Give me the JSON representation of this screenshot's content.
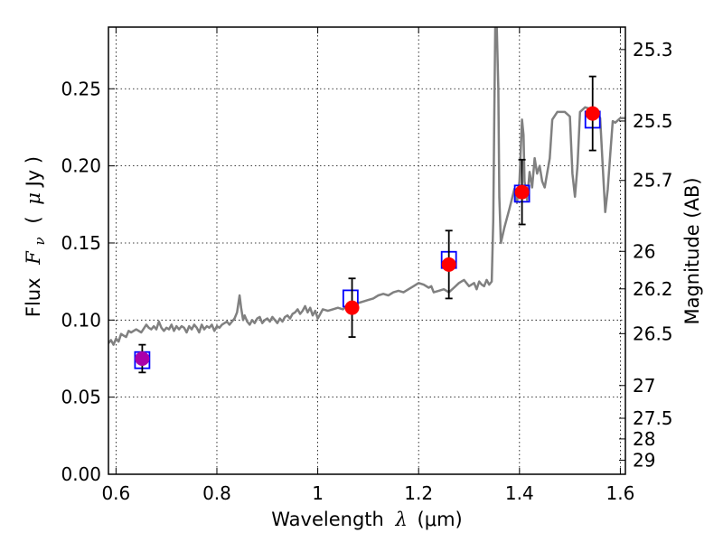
{
  "chart_data": {
    "type": "scatter",
    "xlabel": "Wavelength",
    "xlabel_symbol": "λ",
    "xlabel_unit": "(μm)",
    "ylabel": "Flux",
    "ylabel_symbol": "F",
    "ylabel_subscript": "ν",
    "ylabel_unit_open": "(",
    "ylabel_unit_mu": "μ",
    "ylabel_unit_rest": "Jy )",
    "y2label": "Magnitude (AB)",
    "xlim": [
      0.585,
      1.61
    ],
    "ylim": [
      0.0,
      0.29
    ],
    "x_ticks": [
      0.6,
      0.8,
      1.0,
      1.2,
      1.4,
      1.6
    ],
    "x_tick_labels": [
      "0.6",
      "0.8",
      "1",
      "1.2",
      "1.4",
      "1.6"
    ],
    "y_ticks": [
      0.0,
      0.05,
      0.1,
      0.15,
      0.2,
      0.25
    ],
    "y_tick_labels": [
      "0.00",
      "0.05",
      "0.10",
      "0.15",
      "0.20",
      "0.25"
    ],
    "mag_ticks": [
      25.3,
      25.5,
      25.7,
      26,
      26.2,
      26.5,
      27,
      27.5,
      28,
      29
    ],
    "mag_tick_labels": [
      "25.3",
      "25.5",
      "25.7",
      "26",
      "26.2",
      "26.5",
      "27",
      "27.5",
      "28",
      "29"
    ],
    "grid": true,
    "colors": {
      "model": "#808080",
      "observed": "#ff0000",
      "model_box": "#0000ff",
      "errorbar": "#000000",
      "first_point": "#aa00aa"
    },
    "series": [
      {
        "kind": "model_spectrum",
        "points": [
          [
            0.585,
            0.085
          ],
          [
            0.59,
            0.087
          ],
          [
            0.595,
            0.084
          ],
          [
            0.6,
            0.088
          ],
          [
            0.605,
            0.086
          ],
          [
            0.61,
            0.091
          ],
          [
            0.615,
            0.09
          ],
          [
            0.62,
            0.089
          ],
          [
            0.625,
            0.093
          ],
          [
            0.63,
            0.092
          ],
          [
            0.64,
            0.094
          ],
          [
            0.65,
            0.092
          ],
          [
            0.66,
            0.097
          ],
          [
            0.665,
            0.095
          ],
          [
            0.67,
            0.094
          ],
          [
            0.675,
            0.096
          ],
          [
            0.68,
            0.094
          ],
          [
            0.685,
            0.099
          ],
          [
            0.69,
            0.095
          ],
          [
            0.695,
            0.093
          ],
          [
            0.7,
            0.095
          ],
          [
            0.705,
            0.094
          ],
          [
            0.71,
            0.097
          ],
          [
            0.715,
            0.093
          ],
          [
            0.72,
            0.096
          ],
          [
            0.725,
            0.094
          ],
          [
            0.73,
            0.096
          ],
          [
            0.735,
            0.095
          ],
          [
            0.74,
            0.092
          ],
          [
            0.745,
            0.096
          ],
          [
            0.75,
            0.094
          ],
          [
            0.755,
            0.097
          ],
          [
            0.76,
            0.095
          ],
          [
            0.765,
            0.092
          ],
          [
            0.77,
            0.097
          ],
          [
            0.775,
            0.094
          ],
          [
            0.78,
            0.096
          ],
          [
            0.785,
            0.095
          ],
          [
            0.79,
            0.097
          ],
          [
            0.795,
            0.093
          ],
          [
            0.8,
            0.096
          ],
          [
            0.805,
            0.095
          ],
          [
            0.81,
            0.097
          ],
          [
            0.815,
            0.098
          ],
          [
            0.82,
            0.099
          ],
          [
            0.825,
            0.097
          ],
          [
            0.83,
            0.099
          ],
          [
            0.835,
            0.101
          ],
          [
            0.84,
            0.105
          ],
          [
            0.845,
            0.116
          ],
          [
            0.848,
            0.108
          ],
          [
            0.852,
            0.1
          ],
          [
            0.855,
            0.103
          ],
          [
            0.86,
            0.099
          ],
          [
            0.865,
            0.097
          ],
          [
            0.87,
            0.1
          ],
          [
            0.875,
            0.098
          ],
          [
            0.88,
            0.101
          ],
          [
            0.885,
            0.102
          ],
          [
            0.89,
            0.098
          ],
          [
            0.895,
            0.1
          ],
          [
            0.9,
            0.101
          ],
          [
            0.905,
            0.099
          ],
          [
            0.91,
            0.102
          ],
          [
            0.915,
            0.1
          ],
          [
            0.92,
            0.098
          ],
          [
            0.925,
            0.101
          ],
          [
            0.93,
            0.099
          ],
          [
            0.935,
            0.102
          ],
          [
            0.94,
            0.103
          ],
          [
            0.945,
            0.101
          ],
          [
            0.95,
            0.104
          ],
          [
            0.955,
            0.105
          ],
          [
            0.96,
            0.107
          ],
          [
            0.965,
            0.104
          ],
          [
            0.97,
            0.106
          ],
          [
            0.975,
            0.109
          ],
          [
            0.98,
            0.105
          ],
          [
            0.985,
            0.108
          ],
          [
            0.99,
            0.103
          ],
          [
            0.995,
            0.106
          ],
          [
            1.0,
            0.101
          ],
          [
            1.005,
            0.104
          ],
          [
            1.01,
            0.107
          ],
          [
            1.02,
            0.106
          ],
          [
            1.03,
            0.107
          ],
          [
            1.04,
            0.108
          ],
          [
            1.05,
            0.107
          ],
          [
            1.06,
            0.11
          ],
          [
            1.07,
            0.109
          ],
          [
            1.08,
            0.111
          ],
          [
            1.09,
            0.112
          ],
          [
            1.1,
            0.113
          ],
          [
            1.11,
            0.114
          ],
          [
            1.12,
            0.116
          ],
          [
            1.13,
            0.117
          ],
          [
            1.14,
            0.116
          ],
          [
            1.15,
            0.118
          ],
          [
            1.16,
            0.119
          ],
          [
            1.17,
            0.118
          ],
          [
            1.18,
            0.12
          ],
          [
            1.19,
            0.122
          ],
          [
            1.2,
            0.124
          ],
          [
            1.21,
            0.123
          ],
          [
            1.22,
            0.121
          ],
          [
            1.225,
            0.122
          ],
          [
            1.23,
            0.118
          ],
          [
            1.24,
            0.119
          ],
          [
            1.25,
            0.12
          ],
          [
            1.26,
            0.118
          ],
          [
            1.27,
            0.121
          ],
          [
            1.28,
            0.124
          ],
          [
            1.29,
            0.126
          ],
          [
            1.3,
            0.122
          ],
          [
            1.31,
            0.124
          ],
          [
            1.315,
            0.12
          ],
          [
            1.32,
            0.125
          ],
          [
            1.325,
            0.123
          ],
          [
            1.33,
            0.122
          ],
          [
            1.335,
            0.126
          ],
          [
            1.34,
            0.123
          ],
          [
            1.345,
            0.125
          ],
          [
            1.348,
            0.165
          ],
          [
            1.35,
            0.23
          ],
          [
            1.352,
            0.29
          ],
          [
            1.355,
            0.29
          ],
          [
            1.358,
            0.25
          ],
          [
            1.36,
            0.18
          ],
          [
            1.363,
            0.15
          ],
          [
            1.37,
            0.16
          ],
          [
            1.38,
            0.172
          ],
          [
            1.39,
            0.185
          ],
          [
            1.395,
            0.176
          ],
          [
            1.4,
            0.19
          ],
          [
            1.405,
            0.23
          ],
          [
            1.408,
            0.22
          ],
          [
            1.41,
            0.19
          ],
          [
            1.415,
            0.178
          ],
          [
            1.42,
            0.196
          ],
          [
            1.425,
            0.186
          ],
          [
            1.43,
            0.205
          ],
          [
            1.435,
            0.195
          ],
          [
            1.44,
            0.2
          ],
          [
            1.445,
            0.19
          ],
          [
            1.45,
            0.186
          ],
          [
            1.46,
            0.205
          ],
          [
            1.465,
            0.23
          ],
          [
            1.475,
            0.235
          ],
          [
            1.49,
            0.235
          ],
          [
            1.5,
            0.232
          ],
          [
            1.505,
            0.195
          ],
          [
            1.51,
            0.18
          ],
          [
            1.515,
            0.2
          ],
          [
            1.52,
            0.235
          ],
          [
            1.53,
            0.238
          ],
          [
            1.54,
            0.237
          ],
          [
            1.55,
            0.236
          ],
          [
            1.56,
            0.231
          ],
          [
            1.565,
            0.2
          ],
          [
            1.57,
            0.17
          ],
          [
            1.575,
            0.185
          ],
          [
            1.58,
            0.208
          ],
          [
            1.585,
            0.229
          ],
          [
            1.59,
            0.228
          ],
          [
            1.6,
            0.231
          ],
          [
            1.61,
            0.231
          ]
        ]
      },
      {
        "kind": "model_photometry",
        "points": [
          [
            0.652,
            0.074
          ],
          [
            1.065,
            0.114
          ],
          [
            1.26,
            0.139
          ],
          [
            1.405,
            0.182
          ],
          [
            1.545,
            0.23
          ]
        ]
      },
      {
        "kind": "observed",
        "points": [
          {
            "x": 0.652,
            "y": 0.075,
            "err": 0.009
          },
          {
            "x": 1.068,
            "y": 0.108,
            "err": 0.019
          },
          {
            "x": 1.26,
            "y": 0.136,
            "err": 0.022
          },
          {
            "x": 1.405,
            "y": 0.183,
            "err": 0.021
          },
          {
            "x": 1.545,
            "y": 0.234,
            "err": 0.024
          }
        ]
      }
    ]
  }
}
